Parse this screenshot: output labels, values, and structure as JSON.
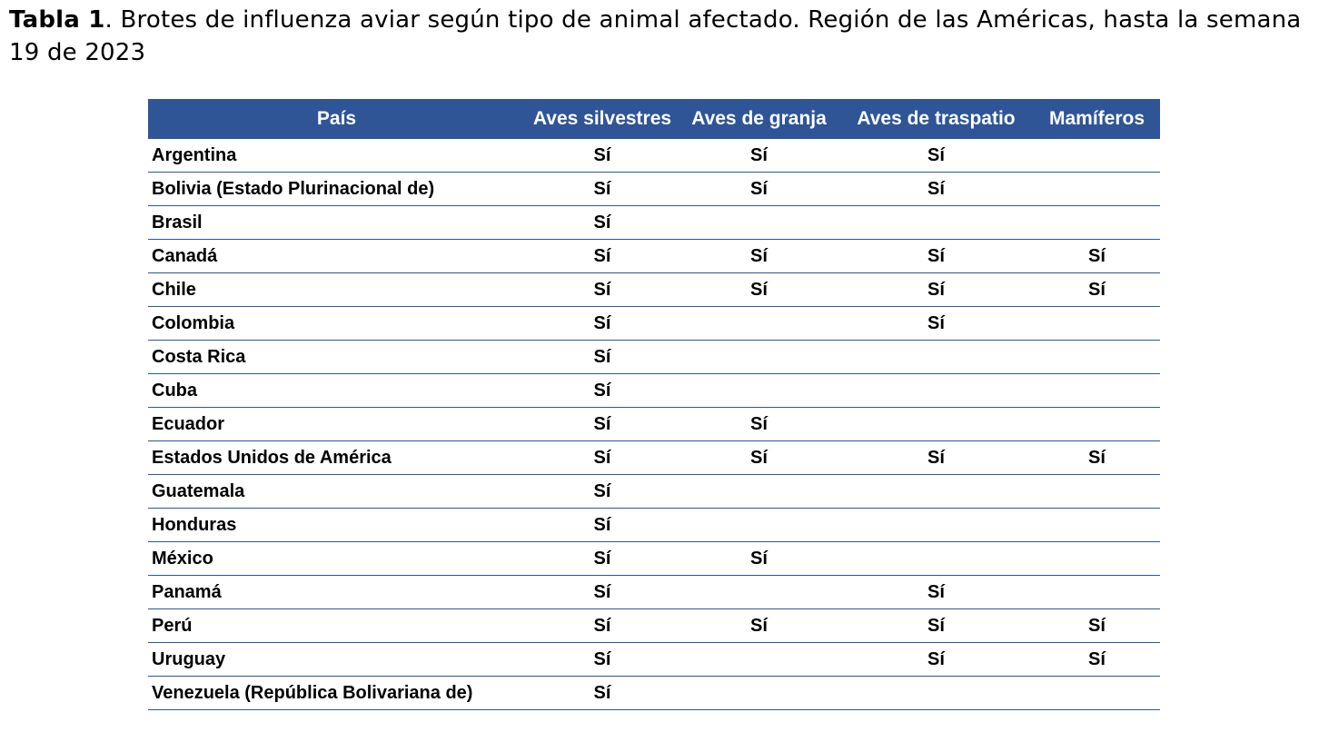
{
  "caption": {
    "label": "Tabla 1",
    "text": ". Brotes de influenza aviar según tipo de animal afectado. Región de las Américas, hasta la semana  19 de 2023"
  },
  "table": {
    "headers": [
      "País",
      "Aves silvestres",
      "Aves de granja",
      "Aves de traspatio",
      "Mamíferos"
    ],
    "rows": [
      [
        "Argentina",
        "Sí",
        "Sí",
        "Sí",
        ""
      ],
      [
        "Bolivia (Estado Plurinacional de)",
        "Sí",
        "Sí",
        "Sí",
        ""
      ],
      [
        "Brasil",
        "Sí",
        "",
        "",
        ""
      ],
      [
        "Canadá",
        "Sí",
        "Sí",
        "Sí",
        "Sí"
      ],
      [
        "Chile",
        "Sí",
        "Sí",
        "Sí",
        "Sí"
      ],
      [
        "Colombia",
        "Sí",
        "",
        "Sí",
        ""
      ],
      [
        "Costa Rica",
        "Sí",
        "",
        "",
        ""
      ],
      [
        "Cuba",
        "Sí",
        "",
        "",
        ""
      ],
      [
        "Ecuador",
        "Sí",
        "Sí",
        "",
        ""
      ],
      [
        "Estados Unidos de América",
        "Sí",
        "Sí",
        "Sí",
        "Sí"
      ],
      [
        "Guatemala",
        "Sí",
        "",
        "",
        ""
      ],
      [
        "Honduras",
        "Sí",
        "",
        "",
        ""
      ],
      [
        "México",
        "Sí",
        "Sí",
        "",
        ""
      ],
      [
        "Panamá",
        "Sí",
        "",
        "Sí",
        ""
      ],
      [
        "Perú",
        "Sí",
        "Sí",
        "Sí",
        "Sí"
      ],
      [
        "Uruguay",
        "Sí",
        "",
        "Sí",
        "Sí"
      ],
      [
        "Venezuela (República Bolivariana de)",
        "Sí",
        "",
        "",
        ""
      ]
    ]
  },
  "colors": {
    "header_background": "#2f5597",
    "header_text": "#ffffff",
    "row_divider": "#2f5597"
  }
}
